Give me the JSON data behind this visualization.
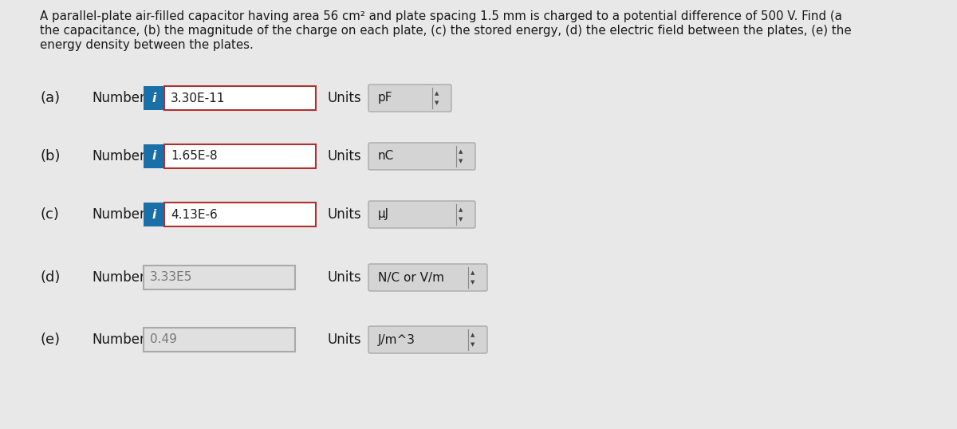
{
  "title_line1": "A parallel-plate air-filled capacitor having area 56 cm² and plate spacing 1.5 mm is charged to a potential difference of 500 V. Find (a",
  "title_line2": "the capacitance, (b) the magnitude of the charge on each plate, (c) the stored energy, (d) the electric field between the plates, (e) the",
  "title_line3": "energy density between the plates.",
  "bg_color": "#e8e8e8",
  "rows": [
    {
      "label": "(a)",
      "has_info": true,
      "number_value": "3.30E-11",
      "number_box_border": "#b03030",
      "number_box_bg": "#ffffff",
      "info_bg": "#1a6fa8",
      "units_value": "pF",
      "units_box_bg": "#d4d4d4",
      "units_box_border": "#aaaaaa"
    },
    {
      "label": "(b)",
      "has_info": true,
      "number_value": "1.65E-8",
      "number_box_border": "#b03030",
      "number_box_bg": "#ffffff",
      "info_bg": "#1a6fa8",
      "units_value": "nC",
      "units_box_bg": "#d4d4d4",
      "units_box_border": "#aaaaaa"
    },
    {
      "label": "(c)",
      "has_info": true,
      "number_value": "4.13E-6",
      "number_box_border": "#b03030",
      "number_box_bg": "#ffffff",
      "info_bg": "#1a6fa8",
      "units_value": "μJ",
      "units_box_bg": "#d4d4d4",
      "units_box_border": "#aaaaaa"
    },
    {
      "label": "(d)",
      "has_info": false,
      "number_value": "3.33E5",
      "number_box_border": "#aaaaaa",
      "number_box_bg": "#e0e0e0",
      "info_bg": null,
      "units_value": "N/C or V/m",
      "units_box_bg": "#d4d4d4",
      "units_box_border": "#aaaaaa"
    },
    {
      "label": "(e)",
      "has_info": false,
      "number_value": "0.49",
      "number_box_border": "#aaaaaa",
      "number_box_bg": "#e0e0e0",
      "info_bg": null,
      "units_value": "J/m^3",
      "units_box_bg": "#d4d4d4",
      "units_box_border": "#aaaaaa"
    }
  ],
  "text_color": "#1a1a1a",
  "label_fontsize": 12,
  "value_fontsize": 11,
  "title_fontsize": 10.8,
  "units_text_color": "#555555"
}
